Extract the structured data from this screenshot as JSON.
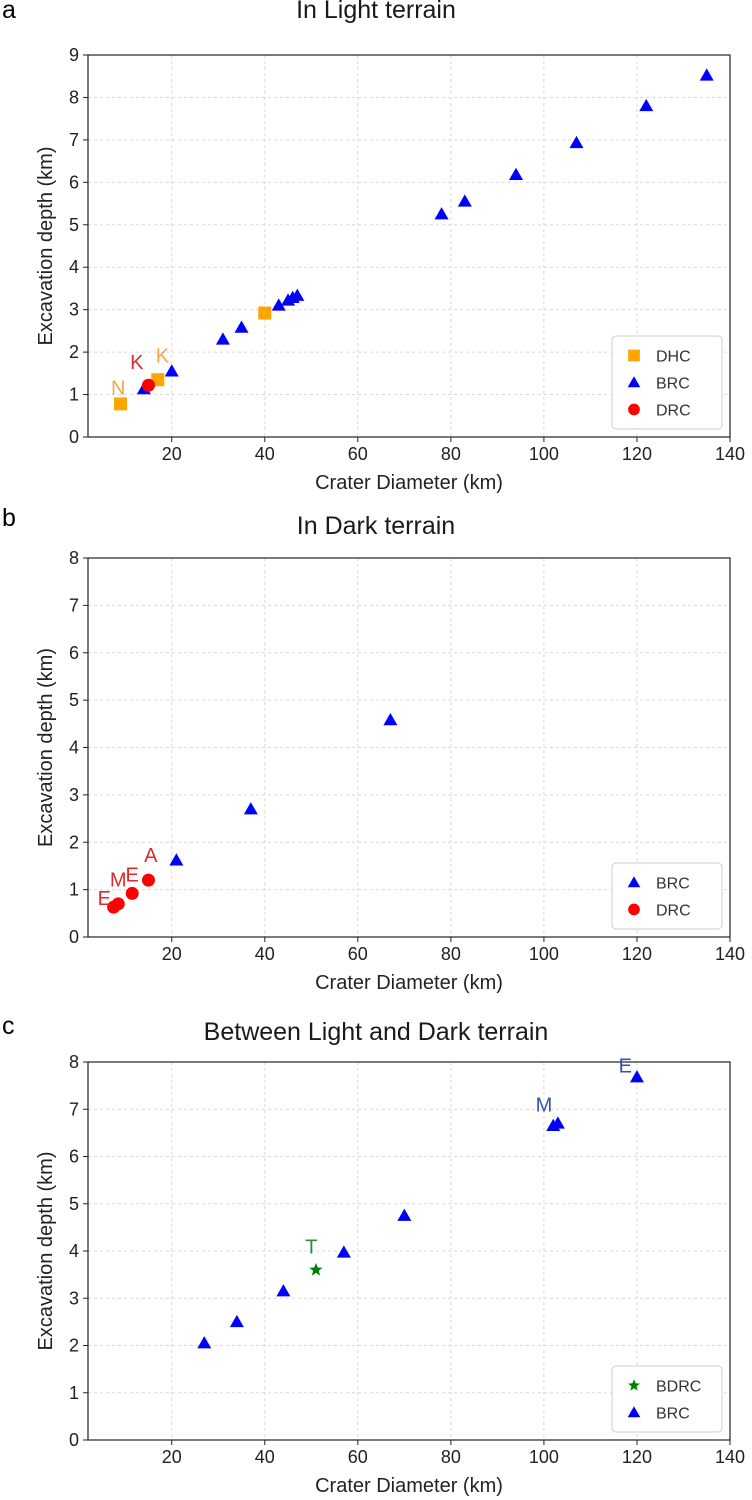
{
  "chart_data": [
    {
      "panel": "a",
      "type": "scatter",
      "title": "In Light terrain",
      "xlabel": "Crater Diameter (km)",
      "ylabel": "Excavation depth (km)",
      "xlim": [
        2,
        140
      ],
      "ylim": [
        0,
        9
      ],
      "xticks": [
        20,
        40,
        60,
        80,
        100,
        120,
        140
      ],
      "yticks": [
        0,
        1,
        2,
        3,
        4,
        5,
        6,
        7,
        8,
        9
      ],
      "grid": true,
      "legend": "lower-right",
      "series": [
        {
          "name": "DHC",
          "marker": "square",
          "color": "#ffa500",
          "points": [
            [
              9,
              0.78
            ],
            [
              17,
              1.35
            ],
            [
              40,
              2.92
            ]
          ]
        },
        {
          "name": "BRC",
          "marker": "triangle",
          "color": "#0000ff",
          "points": [
            [
              14,
              1.13
            ],
            [
              20,
              1.55
            ],
            [
              31,
              2.3
            ],
            [
              35,
              2.58
            ],
            [
              43,
              3.1
            ],
            [
              45,
              3.22
            ],
            [
              46,
              3.28
            ],
            [
              47,
              3.33
            ],
            [
              78,
              5.25
            ],
            [
              83,
              5.55
            ],
            [
              94,
              6.18
            ],
            [
              107,
              6.93
            ],
            [
              122,
              7.8
            ],
            [
              135,
              8.52
            ]
          ]
        },
        {
          "name": "DRC",
          "marker": "circle",
          "color": "#ff0000",
          "points": [
            [
              15,
              1.22
            ]
          ]
        }
      ],
      "annotations": [
        {
          "text": "N",
          "x": 8.5,
          "y": 1.0,
          "color": "#f4a54a"
        },
        {
          "text": "K",
          "x": 12.5,
          "y": 1.6,
          "color": "#dd2a2a"
        },
        {
          "text": "K",
          "x": 18,
          "y": 1.75,
          "color": "#f4a54a"
        }
      ]
    },
    {
      "panel": "b",
      "type": "scatter",
      "title": "In Dark terrain",
      "xlabel": "Crater Diameter (km)",
      "ylabel": "Excavation depth (km)",
      "xlim": [
        2,
        140
      ],
      "ylim": [
        0,
        8
      ],
      "xticks": [
        20,
        40,
        60,
        80,
        100,
        120,
        140
      ],
      "yticks": [
        0,
        1,
        2,
        3,
        4,
        5,
        6,
        7,
        8
      ],
      "grid": true,
      "legend": "lower-right",
      "series": [
        {
          "name": "BRC",
          "marker": "triangle",
          "color": "#0000ff",
          "points": [
            [
              21,
              1.62
            ],
            [
              37,
              2.7
            ],
            [
              67,
              4.58
            ]
          ]
        },
        {
          "name": "DRC",
          "marker": "circle",
          "color": "#ff0000",
          "points": [
            [
              7.5,
              0.63
            ],
            [
              8.5,
              0.7
            ],
            [
              11.5,
              0.92
            ],
            [
              15,
              1.2
            ]
          ]
        }
      ],
      "annotations": [
        {
          "text": "E",
          "x": 5.5,
          "y": 0.68,
          "color": "#dd2a2a"
        },
        {
          "text": "M",
          "x": 8.5,
          "y": 1.07,
          "color": "#dd2a2a"
        },
        {
          "text": "E",
          "x": 11.5,
          "y": 1.17,
          "color": "#dd2a2a"
        },
        {
          "text": "A",
          "x": 15.5,
          "y": 1.58,
          "color": "#dd2a2a"
        }
      ]
    },
    {
      "panel": "c",
      "type": "scatter",
      "title": "Between Light and Dark terrain",
      "xlabel": "Crater Diameter (km)",
      "ylabel": "Excavation depth (km)",
      "xlim": [
        2,
        140
      ],
      "ylim": [
        0,
        8
      ],
      "xticks": [
        20,
        40,
        60,
        80,
        100,
        120,
        140
      ],
      "yticks": [
        0,
        1,
        2,
        3,
        4,
        5,
        6,
        7,
        8
      ],
      "grid": true,
      "legend": "lower-right",
      "series": [
        {
          "name": "BDRC",
          "marker": "star",
          "color": "#008000",
          "points": [
            [
              51,
              3.6
            ]
          ]
        },
        {
          "name": "BRC",
          "marker": "triangle",
          "color": "#0000ff",
          "points": [
            [
              27,
              2.05
            ],
            [
              34,
              2.5
            ],
            [
              44,
              3.15
            ],
            [
              57,
              3.97
            ],
            [
              70,
              4.75
            ],
            [
              102,
              6.65
            ],
            [
              103,
              6.7
            ],
            [
              120,
              7.68
            ]
          ]
        }
      ],
      "annotations": [
        {
          "text": "T",
          "x": 50,
          "y": 3.95,
          "color": "#2e8b3a"
        },
        {
          "text": "M",
          "x": 100,
          "y": 6.95,
          "color": "#3a4fb0"
        },
        {
          "text": "E",
          "x": 117.5,
          "y": 7.78,
          "color": "#3a4fb0"
        }
      ]
    }
  ]
}
